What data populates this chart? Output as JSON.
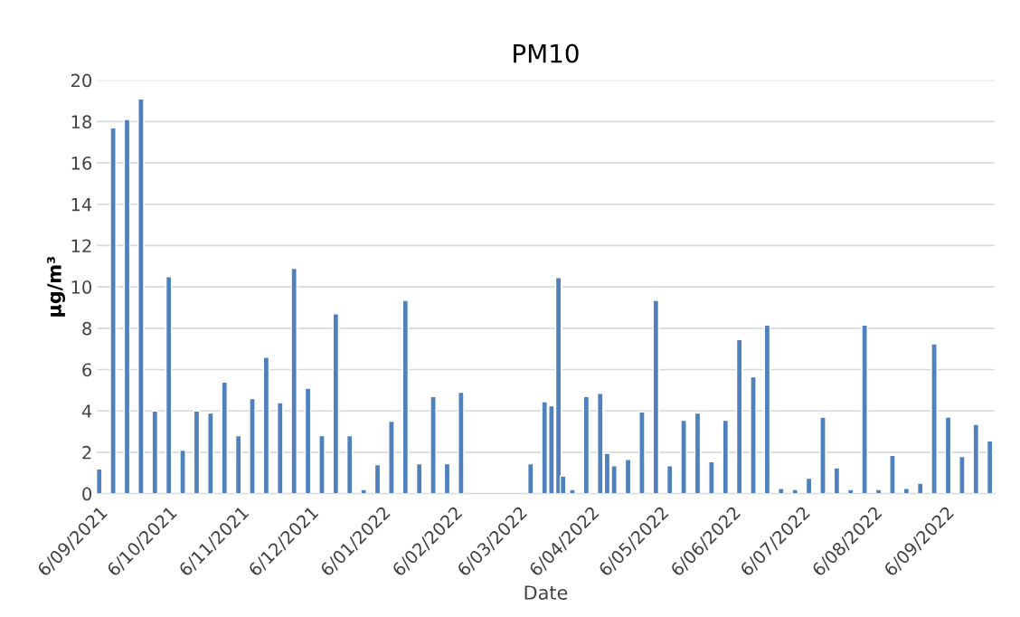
{
  "chart_data": {
    "type": "bar",
    "title": "PM10",
    "xlabel": "Date",
    "ylabel": "µg/m³",
    "x": [
      "2021-09-06",
      "2021-09-12",
      "2021-09-18",
      "2021-09-24",
      "2021-09-30",
      "2021-10-06",
      "2021-10-12",
      "2021-10-18",
      "2021-10-24",
      "2021-10-30",
      "2021-11-05",
      "2021-11-11",
      "2021-11-17",
      "2021-11-23",
      "2021-11-29",
      "2021-12-05",
      "2021-12-11",
      "2021-12-17",
      "2021-12-23",
      "2021-12-29",
      "2022-01-04",
      "2022-01-10",
      "2022-01-16",
      "2022-01-22",
      "2022-01-28",
      "2022-02-03",
      "2022-02-09",
      "2022-03-11",
      "2022-03-17",
      "2022-03-20",
      "2022-03-23",
      "2022-03-25",
      "2022-03-29",
      "2022-04-04",
      "2022-04-10",
      "2022-04-13",
      "2022-04-16",
      "2022-04-22",
      "2022-04-28",
      "2022-05-04",
      "2022-05-10",
      "2022-05-16",
      "2022-05-22",
      "2022-05-28",
      "2022-06-03",
      "2022-06-09",
      "2022-06-15",
      "2022-06-21",
      "2022-06-27",
      "2022-07-03",
      "2022-07-09",
      "2022-07-15",
      "2022-07-21",
      "2022-07-27",
      "2022-08-02",
      "2022-08-08",
      "2022-08-14",
      "2022-08-20",
      "2022-08-26",
      "2022-09-01",
      "2022-09-07",
      "2022-09-13",
      "2022-09-19",
      "2022-09-25"
    ],
    "series": [
      {
        "color": "#4f81bd",
        "values": [
          1.2,
          17.7,
          18.1,
          19.1,
          4.0,
          10.5,
          2.1,
          4.0,
          3.9,
          5.4,
          2.8,
          4.6,
          6.6,
          4.4,
          10.9,
          5.1,
          2.8,
          8.7,
          2.8,
          0.2,
          1.4,
          3.5,
          9.35,
          1.45,
          4.7,
          1.45,
          4.9,
          1.45,
          4.45,
          4.25,
          10.45,
          0.85,
          0.2,
          4.7,
          4.85,
          1.95,
          1.35,
          1.65,
          3.95,
          9.35,
          1.35,
          3.55,
          3.9,
          1.55,
          3.55,
          7.45,
          5.65,
          8.15,
          0.25,
          0.2,
          0.75,
          3.7,
          1.25,
          0.2,
          8.15,
          0.2,
          1.85,
          0.25,
          0.5,
          7.25,
          3.7,
          1.8,
          3.35,
          2.55
        ]
      }
    ],
    "xlim": [
      "2021-09-05",
      "2022-09-27"
    ],
    "xticks": [
      {
        "value": "2021-09-06",
        "label": "6/09/2021"
      },
      {
        "value": "2021-10-06",
        "label": "6/10/2021"
      },
      {
        "value": "2021-11-06",
        "label": "6/11/2021"
      },
      {
        "value": "2021-12-06",
        "label": "6/12/2021"
      },
      {
        "value": "2022-01-06",
        "label": "6/01/2022"
      },
      {
        "value": "2022-02-06",
        "label": "6/02/2022"
      },
      {
        "value": "2022-03-06",
        "label": "6/03/2022"
      },
      {
        "value": "2022-04-06",
        "label": "6/04/2022"
      },
      {
        "value": "2022-05-06",
        "label": "6/05/2022"
      },
      {
        "value": "2022-06-06",
        "label": "6/06/2022"
      },
      {
        "value": "2022-07-06",
        "label": "6/07/2022"
      },
      {
        "value": "2022-08-06",
        "label": "6/08/2022"
      },
      {
        "value": "2022-09-06",
        "label": "6/09/2022"
      }
    ],
    "ylim": [
      0,
      20
    ],
    "yticks": [
      0,
      2,
      4,
      6,
      8,
      10,
      12,
      14,
      16,
      18,
      20
    ],
    "grid": "y"
  }
}
